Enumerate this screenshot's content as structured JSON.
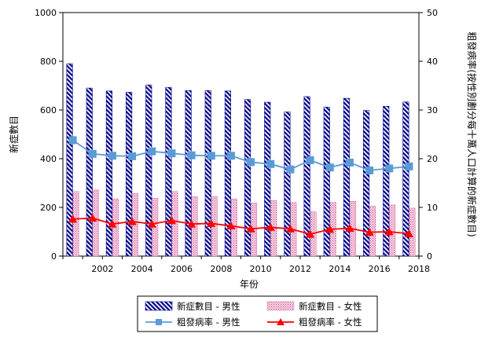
{
  "chart_data": {
    "type": "bar",
    "xlabel": "年份",
    "ylabel_left": "新症數目",
    "ylabel_right": "粗發病率(按性別劃分每十萬人口計算的新症數目)",
    "ylim_left": [
      0,
      1000
    ],
    "ylim_right": [
      0,
      50
    ],
    "yticks_left": [
      "0",
      "200",
      "400",
      "600",
      "800",
      "1000"
    ],
    "yticks_right": [
      "0",
      "10",
      "20",
      "30",
      "40",
      "50"
    ],
    "x": [
      2001,
      2002,
      2003,
      2004,
      2005,
      2006,
      2007,
      2008,
      2009,
      2010,
      2011,
      2012,
      2013,
      2014,
      2015,
      2016,
      2017,
      2018
    ],
    "xtick_labels": [
      "2002",
      "2004",
      "2006",
      "2008",
      "2010",
      "2012",
      "2014",
      "2016",
      "2018"
    ],
    "grid": false,
    "legend_position": "bottom",
    "series": [
      {
        "name": "新症數目 - 男性",
        "kind": "bar",
        "axis": "left",
        "color": "#00008B",
        "values": [
          790,
          690,
          678,
          673,
          703,
          693,
          680,
          680,
          678,
          643,
          632,
          592,
          655,
          612,
          648,
          598,
          615,
          633
        ]
      },
      {
        "name": "新症數目 - 女性",
        "kind": "bar",
        "axis": "left",
        "color": "#E8A8C8",
        "values": [
          265,
          272,
          235,
          257,
          238,
          265,
          244,
          245,
          235,
          218,
          228,
          220,
          182,
          220,
          225,
          205,
          210,
          197
        ]
      },
      {
        "name": "粗發病率 - 男性",
        "kind": "line",
        "axis": "right",
        "color": "#5B9BD5",
        "values": [
          23.8,
          21.0,
          20.6,
          20.5,
          21.5,
          21.1,
          20.7,
          20.6,
          20.6,
          19.3,
          18.9,
          17.8,
          19.7,
          18.2,
          19.2,
          17.6,
          18.0,
          18.4
        ]
      },
      {
        "name": "粗發病率 - 女性",
        "kind": "line",
        "axis": "right",
        "color": "#FF0000",
        "values": [
          7.6,
          7.8,
          6.6,
          7.1,
          6.6,
          7.3,
          6.6,
          6.7,
          6.2,
          5.6,
          5.9,
          5.6,
          4.5,
          5.5,
          5.7,
          4.9,
          5.0,
          4.6
        ]
      }
    ]
  }
}
